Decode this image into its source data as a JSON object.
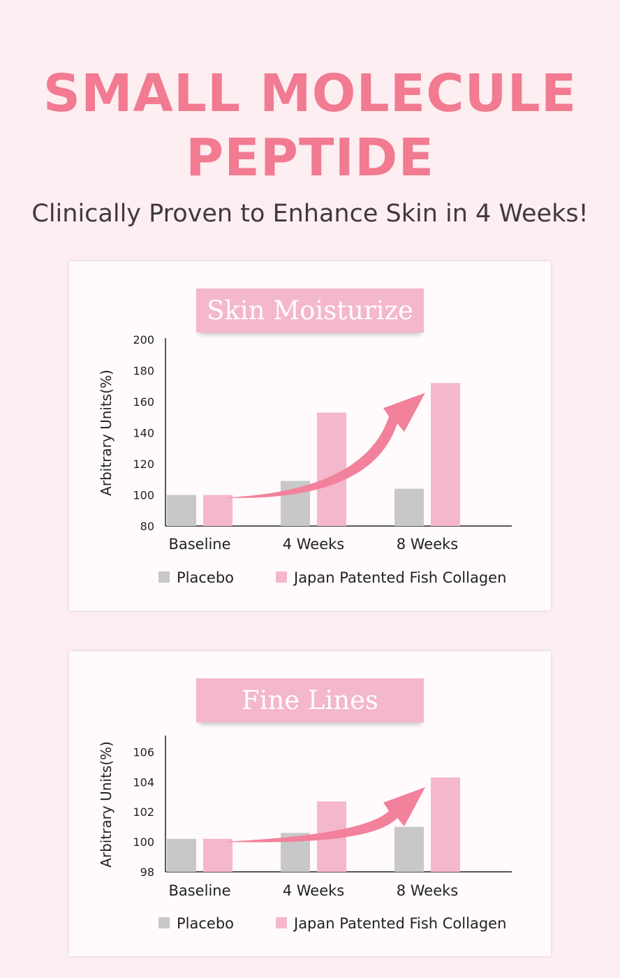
{
  "header": {
    "title_line1": "SMALL MOLECULE",
    "title_line2": "PEPTIDE",
    "subtitle": "Clinically Proven to Enhance Skin in 4 Weeks!"
  },
  "colors": {
    "accent": "#f27a91",
    "placebo": "#c8c8c8",
    "collagen": "#f4b7cd",
    "arrow": "#f2819c"
  },
  "chart_data": [
    {
      "type": "bar",
      "title": "Skin Moisturize",
      "ylabel": "Arbitrary  Units(%)",
      "xlabel": "",
      "categories": [
        "Baseline",
        "4 Weeks",
        "8 Weeks"
      ],
      "ylim": [
        80,
        200
      ],
      "yticks": [
        200,
        180,
        160,
        140,
        120,
        100,
        80
      ],
      "series": [
        {
          "name": "Placebo",
          "color": "#c8c8c8",
          "values": [
            100,
            109,
            104
          ]
        },
        {
          "name": "Japan Patented Fish Collagen",
          "color": "#f4b7cd",
          "values": [
            100,
            153,
            172
          ]
        }
      ],
      "legend": "bottom",
      "grid": false,
      "annotation": "trend-arrow"
    },
    {
      "type": "bar",
      "title": "Fine Lines",
      "ylabel": "Arbitrary  Units(%)",
      "xlabel": "",
      "categories": [
        "Baseline",
        "4 Weeks",
        "8 Weeks"
      ],
      "ylim": [
        98,
        107
      ],
      "yticks": [
        106,
        104,
        102,
        100,
        98
      ],
      "series": [
        {
          "name": "Placebo",
          "color": "#c8c8c8",
          "values": [
            100.2,
            100.6,
            101
          ]
        },
        {
          "name": "Japan Patented Fish Collagen",
          "color": "#f4b7cd",
          "values": [
            100.2,
            102.7,
            104.3
          ]
        }
      ],
      "legend": "bottom",
      "grid": false,
      "annotation": "trend-arrow"
    }
  ]
}
